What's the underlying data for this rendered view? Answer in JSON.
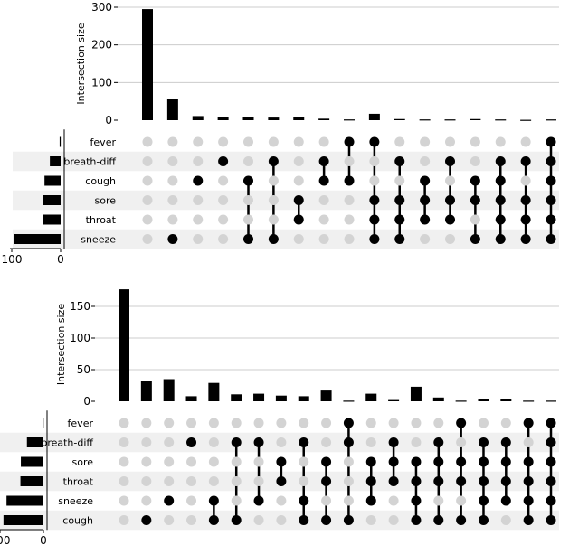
{
  "chart_data": [
    {
      "type": "upset",
      "ylabel": "Intersection size",
      "ylim": [
        0,
        300
      ],
      "yticks": [
        0,
        100,
        200,
        300
      ],
      "size_ticks": [
        100,
        0
      ],
      "size_max": 100,
      "sets": [
        "fever",
        "breath-diff",
        "cough",
        "sore",
        "throat",
        "sneeze"
      ],
      "set_sizes": [
        2,
        22,
        33,
        36,
        36,
        95
      ],
      "intersections": [
        {
          "value": 295,
          "members": []
        },
        {
          "value": 57,
          "members": [
            "sneeze"
          ]
        },
        {
          "value": 11,
          "members": [
            "cough"
          ]
        },
        {
          "value": 9,
          "members": [
            "breath-diff"
          ]
        },
        {
          "value": 8,
          "members": [
            "cough",
            "sneeze"
          ]
        },
        {
          "value": 7,
          "members": [
            "breath-diff",
            "sneeze"
          ]
        },
        {
          "value": 8,
          "members": [
            "sore",
            "throat"
          ]
        },
        {
          "value": 4,
          "members": [
            "breath-diff",
            "cough"
          ]
        },
        {
          "value": 2,
          "members": [
            "fever",
            "cough"
          ]
        },
        {
          "value": 17,
          "members": [
            "fever",
            "sore",
            "throat",
            "sneeze"
          ]
        },
        {
          "value": 3,
          "members": [
            "breath-diff",
            "sore",
            "throat",
            "sneeze"
          ]
        },
        {
          "value": 2,
          "members": [
            "cough",
            "sore",
            "throat"
          ]
        },
        {
          "value": 2,
          "members": [
            "breath-diff",
            "sore",
            "throat"
          ]
        },
        {
          "value": 3,
          "members": [
            "cough",
            "sore",
            "sneeze"
          ]
        },
        {
          "value": 2,
          "members": [
            "breath-diff",
            "cough",
            "sore",
            "throat",
            "sneeze"
          ]
        },
        {
          "value": 1,
          "members": [
            "breath-diff",
            "sore",
            "throat",
            "sneeze"
          ]
        },
        {
          "value": 2,
          "members": [
            "fever",
            "breath-diff",
            "cough",
            "sore",
            "throat",
            "sneeze"
          ]
        }
      ]
    },
    {
      "type": "upset",
      "ylabel": "Intersection size",
      "ylim": [
        0,
        180
      ],
      "yticks": [
        0,
        50,
        100,
        150
      ],
      "size_ticks": [
        100,
        0
      ],
      "size_max": 100,
      "sets": [
        "fever",
        "breath-diff",
        "sore",
        "throat",
        "sneeze",
        "cough"
      ],
      "set_sizes": [
        2,
        38,
        52,
        53,
        85,
        92
      ],
      "intersections": [
        {
          "value": 177,
          "members": []
        },
        {
          "value": 32,
          "members": [
            "cough"
          ]
        },
        {
          "value": 35,
          "members": [
            "sneeze"
          ]
        },
        {
          "value": 8,
          "members": [
            "breath-diff"
          ]
        },
        {
          "value": 29,
          "members": [
            "sneeze",
            "cough"
          ]
        },
        {
          "value": 11,
          "members": [
            "breath-diff",
            "cough"
          ]
        },
        {
          "value": 12,
          "members": [
            "breath-diff",
            "sneeze"
          ]
        },
        {
          "value": 9,
          "members": [
            "sore",
            "throat"
          ]
        },
        {
          "value": 8,
          "members": [
            "breath-diff",
            "sneeze",
            "cough"
          ]
        },
        {
          "value": 17,
          "members": [
            "sore",
            "throat",
            "cough"
          ]
        },
        {
          "value": 1,
          "members": [
            "fever",
            "breath-diff",
            "cough"
          ]
        },
        {
          "value": 12,
          "members": [
            "sore",
            "throat",
            "sneeze"
          ]
        },
        {
          "value": 2,
          "members": [
            "breath-diff",
            "sore",
            "throat"
          ]
        },
        {
          "value": 23,
          "members": [
            "sore",
            "throat",
            "sneeze",
            "cough"
          ]
        },
        {
          "value": 6,
          "members": [
            "breath-diff",
            "sore",
            "throat",
            "cough"
          ]
        },
        {
          "value": 1,
          "members": [
            "fever",
            "sore",
            "throat",
            "cough"
          ]
        },
        {
          "value": 3,
          "members": [
            "breath-diff",
            "sore",
            "throat",
            "sneeze",
            "cough"
          ]
        },
        {
          "value": 4,
          "members": [
            "breath-diff",
            "sore",
            "throat",
            "sneeze"
          ]
        },
        {
          "value": 1,
          "members": [
            "fever",
            "sore",
            "throat",
            "sneeze",
            "cough"
          ]
        },
        {
          "value": 1,
          "members": [
            "fever",
            "breath-diff",
            "sore",
            "throat",
            "sneeze",
            "cough"
          ]
        }
      ]
    }
  ]
}
